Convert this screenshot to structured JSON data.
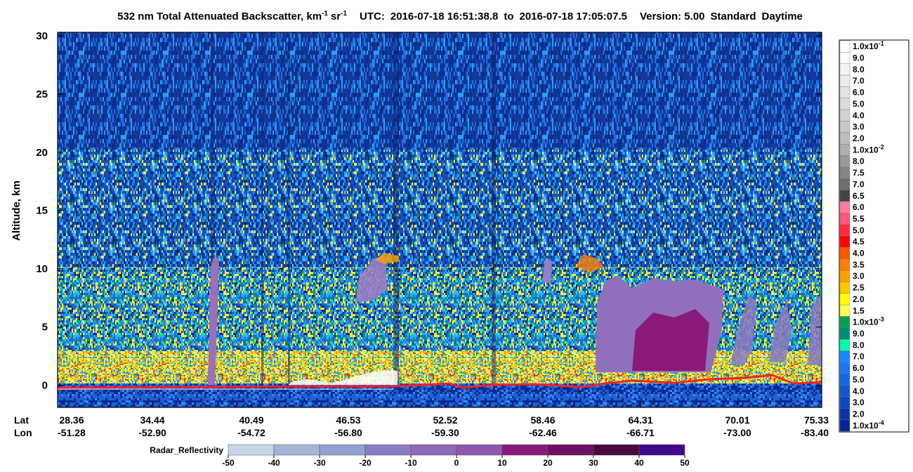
{
  "chart_data": {
    "type": "curtain",
    "title": {
      "main": "532 nm Total Attenuated Backscatter, km",
      "exp1": "-1",
      "unit": "sr",
      "exp2": "-1",
      "utc_label": "UTC:",
      "start": "2016-07-18 16:51:38.8",
      "to": "to",
      "end": "2016-07-18 17:05:07.5",
      "version": "Version: 5.00",
      "product": "Standard",
      "mode": "Daytime"
    },
    "ylabel": "Altitude, km",
    "ylim": [
      -1.9,
      30.3
    ],
    "yticks": [
      0,
      5,
      10,
      15,
      20,
      25,
      30
    ],
    "lat_label": "Lat",
    "lon_label": "Lon",
    "xticks": [
      {
        "lat": "28.36",
        "lon": "-51.28"
      },
      {
        "lat": "34.44",
        "lon": "-52.90"
      },
      {
        "lat": "40.49",
        "lon": "-54.72"
      },
      {
        "lat": "46.53",
        "lon": "-56.80"
      },
      {
        "lat": "52.52",
        "lon": "-59.30"
      },
      {
        "lat": "58.46",
        "lon": "-62.46"
      },
      {
        "lat": "64.31",
        "lon": "-66.71"
      },
      {
        "lat": "70.01",
        "lon": "-73.00"
      },
      {
        "lat": "75.33",
        "lon": "-83.40"
      }
    ],
    "colorbar": [
      {
        "label": "1.0x10",
        "exp": "-1",
        "color": "#ffffff"
      },
      {
        "label": "9.0",
        "color": "#fdfdfd"
      },
      {
        "label": "8.0",
        "color": "#f4f4f4"
      },
      {
        "label": "7.0",
        "color": "#ececec"
      },
      {
        "label": "6.0",
        "color": "#e4e4e4"
      },
      {
        "label": "5.0",
        "color": "#dcdcdc"
      },
      {
        "label": "4.0",
        "color": "#d2d2d2"
      },
      {
        "label": "3.0",
        "color": "#c8c8c8"
      },
      {
        "label": "2.0",
        "color": "#bdbdbd"
      },
      {
        "label": "1.0x10",
        "exp": "-2",
        "color": "#b0b0b0"
      },
      {
        "label": "8.0",
        "color": "#9a9a9a"
      },
      {
        "label": "7.5",
        "color": "#858585"
      },
      {
        "label": "7.0",
        "color": "#6e6e6e"
      },
      {
        "label": "6.5",
        "color": "#444444"
      },
      {
        "label": "6.0",
        "color": "#ff7a9a"
      },
      {
        "label": "5.5",
        "color": "#ff5577"
      },
      {
        "label": "5.0",
        "color": "#ff2a40"
      },
      {
        "label": "4.5",
        "color": "#ff0000"
      },
      {
        "label": "4.0",
        "color": "#ff5500"
      },
      {
        "label": "3.5",
        "color": "#ff8000"
      },
      {
        "label": "3.0",
        "color": "#ffa200"
      },
      {
        "label": "2.5",
        "color": "#ffc800"
      },
      {
        "label": "2.0",
        "color": "#ffff00"
      },
      {
        "label": "1.5",
        "color": "#ffff50"
      },
      {
        "label": "1.0x10",
        "exp": "-3",
        "color": "#00a050"
      },
      {
        "label": "9.0",
        "color": "#008c78"
      },
      {
        "label": "8.0",
        "color": "#00ffa8"
      },
      {
        "label": "7.0",
        "color": "#1a88ff"
      },
      {
        "label": "6.0",
        "color": "#1a78f0"
      },
      {
        "label": "5.0",
        "color": "#1466e0"
      },
      {
        "label": "4.0",
        "color": "#1256d0"
      },
      {
        "label": "3.0",
        "color": "#0e46c0"
      },
      {
        "label": "2.0",
        "color": "#0a34a8"
      },
      {
        "label": "1.0x10",
        "exp": "-4",
        "color": "#062494"
      }
    ],
    "radar_bar": {
      "label": "Radar_Reflectivity",
      "lim": [
        -50,
        50
      ],
      "ticks": [
        -50,
        -40,
        -30,
        -20,
        -10,
        0,
        10,
        20,
        30,
        40,
        50
      ],
      "colors": [
        "#c6d5e6",
        "#a2b6d8",
        "#90a2d2",
        "#8a7cc4",
        "#9068b8",
        "#8c58b0",
        "#8a1a7a",
        "#6e1060",
        "#4a0a40",
        "#400a8a"
      ]
    }
  }
}
